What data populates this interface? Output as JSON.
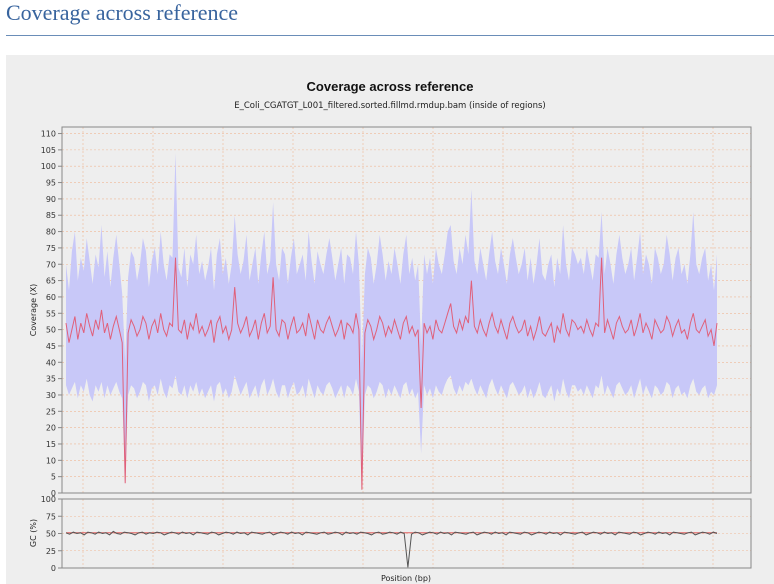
{
  "page": {
    "heading": "Coverage across reference"
  },
  "chart_data": {
    "type": "line",
    "title": "Coverage across reference",
    "subtitle": "E_Coli_CGATGT_L001_filtered.sorted.fillmd.rmdup.bam (inside of regions)",
    "xlabel": "Position (bp)",
    "grid": true,
    "colors": {
      "coverage_line": "#e0607a",
      "coverage_band": "#c8c8f8",
      "gc_line": "#555555",
      "gc_mean_line": "#e06060",
      "grid": "#f0b896"
    },
    "coverage_panel": {
      "ylabel": "Coverage (X)",
      "ylim": [
        0,
        112
      ],
      "yticks": [
        "0",
        "5",
        "10",
        "15",
        "20",
        "25",
        "30",
        "35",
        "40",
        "45",
        "50",
        "55",
        "60",
        "65",
        "70",
        "75",
        "80",
        "85",
        "90",
        "95",
        "100",
        "105",
        "110"
      ],
      "series": [
        {
          "name": "Coverage",
          "values": [
            52,
            46,
            50,
            54,
            47,
            52,
            49,
            55,
            51,
            48,
            53,
            50,
            56,
            49,
            52,
            47,
            51,
            54,
            50,
            46,
            3,
            49,
            53,
            51,
            48,
            50,
            54,
            52,
            47,
            51,
            53,
            49,
            55,
            50,
            48,
            52,
            51,
            72,
            50,
            49,
            53,
            47,
            52,
            50,
            55,
            49,
            51,
            48,
            50,
            53,
            46,
            52,
            54,
            49,
            51,
            47,
            50,
            63,
            52,
            49,
            51,
            54,
            48,
            50,
            53,
            47,
            52,
            55,
            49,
            51,
            66,
            50,
            48,
            53,
            52,
            47,
            51,
            54,
            49,
            50,
            52,
            48,
            55,
            51,
            47,
            53,
            50,
            49,
            52,
            54,
            51,
            48,
            50,
            53,
            47,
            52,
            51,
            49,
            55,
            50,
            1,
            49,
            53,
            51,
            47,
            50,
            54,
            52,
            48,
            51,
            49,
            53,
            50,
            47,
            52,
            54,
            49,
            51,
            48,
            50,
            26,
            52,
            49,
            51,
            47,
            53,
            50,
            49,
            52,
            55,
            58,
            51,
            49,
            53,
            50,
            54,
            52,
            65,
            51,
            49,
            53,
            50,
            48,
            52,
            55,
            51,
            49,
            53,
            50,
            47,
            52,
            54,
            51,
            49,
            50,
            53,
            48,
            51,
            47,
            50,
            54,
            49,
            48,
            50,
            52,
            46,
            51,
            49,
            55,
            50,
            48,
            53,
            52,
            50,
            51,
            49,
            53,
            50,
            48,
            52,
            51,
            72,
            49,
            53,
            50,
            47,
            52,
            54,
            51,
            49,
            50,
            53,
            48,
            51,
            55,
            49,
            52,
            50,
            47,
            53,
            51,
            49,
            50,
            54,
            52,
            48,
            51,
            53,
            49,
            50,
            47,
            52,
            55,
            50,
            49,
            51,
            53,
            48,
            50,
            45,
            52
          ]
        },
        {
          "name": "Coverage band",
          "lower": [
            33,
            30,
            32,
            34,
            29,
            33,
            31,
            35,
            30,
            28,
            33,
            31,
            34,
            29,
            33,
            30,
            32,
            34,
            31,
            29,
            3,
            30,
            33,
            32,
            29,
            31,
            34,
            33,
            28,
            32,
            33,
            30,
            35,
            31,
            29,
            33,
            32,
            36,
            31,
            30,
            33,
            29,
            33,
            31,
            34,
            30,
            32,
            29,
            31,
            33,
            28,
            33,
            34,
            30,
            32,
            29,
            31,
            36,
            33,
            30,
            32,
            34,
            29,
            31,
            33,
            29,
            33,
            35,
            30,
            32,
            35,
            31,
            29,
            33,
            33,
            29,
            32,
            34,
            30,
            31,
            33,
            29,
            35,
            32,
            29,
            33,
            31,
            30,
            33,
            34,
            32,
            29,
            31,
            33,
            29,
            33,
            32,
            30,
            35,
            31,
            1,
            30,
            33,
            32,
            29,
            31,
            34,
            33,
            29,
            32,
            30,
            33,
            31,
            29,
            33,
            34,
            30,
            32,
            29,
            31,
            12,
            33,
            30,
            32,
            29,
            33,
            31,
            30,
            33,
            35,
            36,
            32,
            30,
            33,
            31,
            34,
            33,
            35,
            32,
            30,
            33,
            31,
            29,
            33,
            35,
            32,
            30,
            33,
            31,
            29,
            33,
            34,
            32,
            30,
            31,
            33,
            29,
            32,
            29,
            31,
            34,
            30,
            29,
            31,
            33,
            28,
            32,
            30,
            35,
            31,
            29,
            33,
            33,
            31,
            32,
            30,
            33,
            31,
            29,
            33,
            32,
            36,
            30,
            33,
            31,
            29,
            33,
            34,
            32,
            30,
            31,
            33,
            29,
            32,
            35,
            30,
            33,
            31,
            29,
            33,
            32,
            30,
            31,
            34,
            33,
            29,
            32,
            33,
            30,
            31,
            29,
            33,
            35,
            31,
            30,
            32,
            33,
            29,
            31,
            30,
            33
          ],
          "upper": [
            70,
            62,
            74,
            80,
            65,
            72,
            68,
            78,
            71,
            64,
            73,
            69,
            82,
            66,
            74,
            63,
            72,
            79,
            70,
            61,
            40,
            66,
            74,
            72,
            65,
            70,
            78,
            74,
            63,
            71,
            75,
            67,
            80,
            70,
            65,
            73,
            72,
            104,
            69,
            66,
            75,
            63,
            73,
            70,
            79,
            67,
            71,
            65,
            69,
            75,
            62,
            73,
            78,
            67,
            72,
            64,
            70,
            85,
            73,
            67,
            71,
            79,
            65,
            70,
            75,
            64,
            73,
            80,
            67,
            71,
            89,
            70,
            65,
            75,
            73,
            64,
            72,
            78,
            67,
            70,
            73,
            65,
            80,
            71,
            64,
            74,
            70,
            67,
            73,
            78,
            72,
            65,
            70,
            75,
            64,
            73,
            72,
            67,
            80,
            70,
            40,
            67,
            75,
            72,
            64,
            70,
            79,
            73,
            65,
            71,
            67,
            75,
            70,
            64,
            73,
            79,
            67,
            72,
            65,
            70,
            45,
            73,
            67,
            72,
            64,
            75,
            70,
            67,
            73,
            80,
            82,
            71,
            67,
            75,
            70,
            79,
            73,
            93,
            71,
            67,
            75,
            70,
            65,
            73,
            80,
            71,
            67,
            75,
            70,
            64,
            73,
            78,
            72,
            67,
            70,
            75,
            65,
            72,
            64,
            70,
            78,
            67,
            65,
            70,
            73,
            63,
            72,
            67,
            82,
            70,
            65,
            75,
            73,
            70,
            72,
            67,
            75,
            70,
            65,
            73,
            72,
            86,
            67,
            75,
            70,
            64,
            73,
            79,
            72,
            67,
            70,
            75,
            65,
            72,
            80,
            67,
            73,
            70,
            64,
            75,
            72,
            67,
            70,
            79,
            73,
            65,
            72,
            75,
            67,
            70,
            64,
            73,
            86,
            70,
            67,
            72,
            75,
            65,
            70,
            62,
            73
          ]
        }
      ]
    },
    "gc_panel": {
      "ylabel": "GC (%)",
      "ylim": [
        0,
        100
      ],
      "yticks": [
        "0",
        "25",
        "50",
        "75",
        "100"
      ],
      "mean": 51,
      "series": [
        {
          "name": "GC",
          "values": [
            51,
            49,
            52,
            50,
            51,
            48,
            52,
            51,
            49,
            52,
            50,
            51,
            48,
            53,
            50,
            49,
            52,
            51,
            50,
            48,
            51,
            52,
            49,
            51,
            50,
            52,
            51,
            48,
            50,
            52,
            51,
            49,
            52,
            50,
            51,
            48,
            52,
            51,
            50,
            49,
            52,
            51,
            48,
            50,
            52,
            51,
            49,
            52,
            50,
            51,
            48,
            52,
            51,
            50,
            49,
            51,
            52,
            48,
            50,
            52,
            51,
            49,
            52,
            50,
            51,
            48,
            52,
            51,
            50,
            49,
            51,
            52,
            49,
            50,
            52,
            51,
            48,
            52,
            50,
            51,
            49,
            52,
            51,
            50,
            48,
            51,
            52,
            49,
            50,
            52,
            51,
            49,
            52,
            50,
            1,
            49,
            52,
            51,
            48,
            50,
            52,
            51,
            49,
            52,
            50,
            51,
            48,
            52,
            51,
            50,
            49,
            51,
            52,
            48,
            50,
            52,
            51,
            49,
            52,
            50,
            51,
            48,
            52,
            51,
            50,
            49,
            52,
            51,
            48,
            50,
            52,
            51,
            49,
            52,
            50,
            51,
            48,
            52,
            51,
            50,
            49,
            51,
            52,
            48,
            50,
            52,
            51,
            49,
            52,
            50,
            51,
            48,
            52,
            51,
            50,
            49,
            52,
            51,
            48,
            50,
            52,
            51,
            49,
            52,
            50,
            51,
            48,
            52,
            51,
            50,
            49,
            51,
            52,
            48,
            50,
            52,
            51,
            49,
            52,
            50
          ]
        }
      ]
    }
  }
}
